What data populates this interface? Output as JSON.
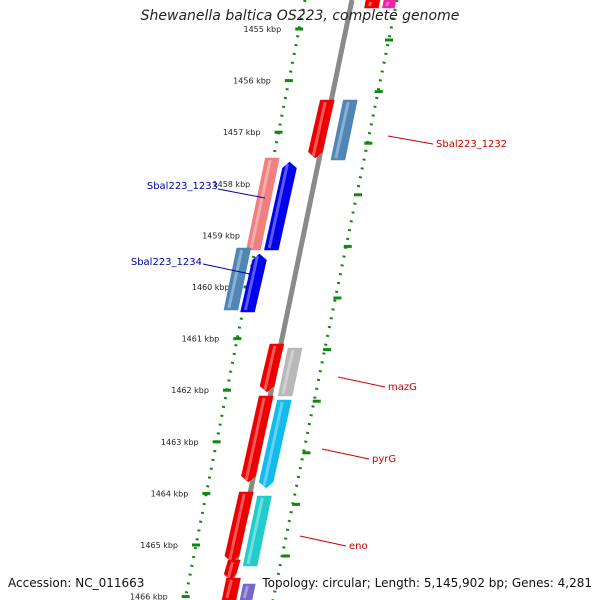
{
  "title": "Shewanella baltica OS223, complete genome",
  "footer": {
    "accession": "Accession: NC_011663",
    "topology": "Topology: circular; Length: 5,145,902 bp; Genes: 4,281"
  },
  "scale": {
    "unit": "kbp",
    "ticks": [
      "1455 kbp",
      "1456 kbp",
      "1457 kbp",
      "1458 kbp",
      "1459 kbp",
      "1460 kbp",
      "1461 kbp",
      "1462 kbp",
      "1463 kbp",
      "1464 kbp",
      "1465 kbp",
      "1466 kbp"
    ]
  },
  "gene_labels": [
    {
      "name": "Sbal223_1232",
      "side": "right",
      "color": "#cc0000"
    },
    {
      "name": "Sbal223_1233",
      "side": "left",
      "color": "#0000aa"
    },
    {
      "name": "Sbal223_1234",
      "side": "left",
      "color": "#0000aa"
    },
    {
      "name": "mazG",
      "side": "right",
      "color": "#cc0000"
    },
    {
      "name": "pyrG",
      "side": "right",
      "color": "#cc0000"
    },
    {
      "name": "eno",
      "side": "right",
      "color": "#cc0000"
    }
  ],
  "colors": {
    "strand_red": "#ee0000",
    "steel_blue": "#4f86b5",
    "blue": "#0000ee",
    "light_red": "#f08080",
    "gray": "#b8b8b8",
    "sky": "#11bbee",
    "teal": "#22cccc",
    "purple": "#7766cc",
    "magenta": "#ee22aa",
    "backbone": "#8a8a8a",
    "dots": "#118811"
  }
}
